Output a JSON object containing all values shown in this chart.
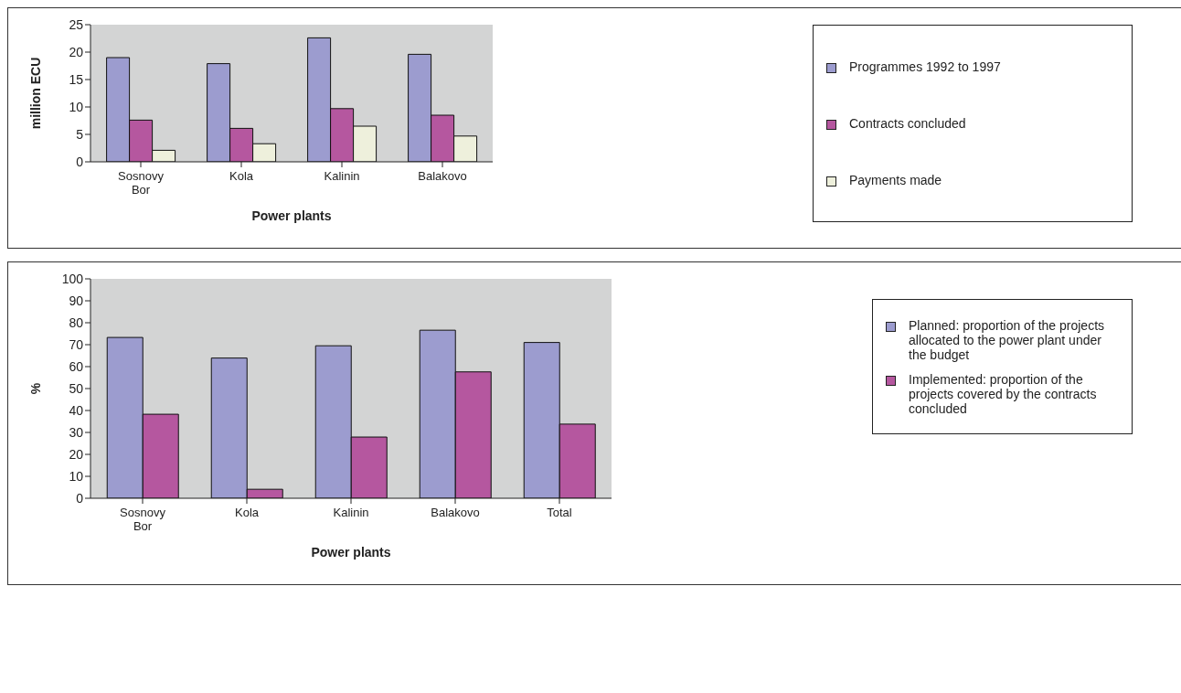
{
  "chart_data": [
    {
      "type": "bar",
      "categories": [
        "Sosnovy Bor",
        "Kola",
        "Kalinin",
        "Balakovo"
      ],
      "xlabel": "Power plants",
      "ylabel": "million ECU",
      "ylim": [
        0,
        25
      ],
      "yticks": [
        0,
        5,
        10,
        15,
        20,
        25
      ],
      "legend": "right",
      "series": [
        {
          "name": "Programmes 1992 to 1997",
          "color": "#9c9ccf",
          "values": [
            19.0,
            17.9,
            22.6,
            19.6
          ]
        },
        {
          "name": "Contracts concluded",
          "color": "#b5579f",
          "values": [
            7.6,
            6.1,
            9.7,
            8.5
          ]
        },
        {
          "name": "Payments made",
          "color": "#eef0dc",
          "values": [
            2.1,
            3.3,
            6.5,
            4.7
          ]
        }
      ]
    },
    {
      "type": "bar",
      "categories": [
        "Sosnovy Bor",
        "Kola",
        "Kalinin",
        "Balakovo",
        "Total"
      ],
      "xlabel": "Power plants",
      "ylabel": "%",
      "ylim": [
        0,
        100
      ],
      "yticks": [
        0,
        10,
        20,
        30,
        40,
        50,
        60,
        70,
        80,
        90,
        100
      ],
      "legend": "right",
      "series": [
        {
          "name": "Planned: proportion of the projects allocated to the power plant under the budget",
          "color": "#9c9ccf",
          "values": [
            73.3,
            63.9,
            69.5,
            76.6,
            71.0
          ]
        },
        {
          "name": "Implemented: proportion of the projects covered by the contracts concluded",
          "color": "#b5579f",
          "values": [
            38.3,
            4.1,
            27.9,
            57.6,
            33.8
          ]
        }
      ]
    }
  ]
}
